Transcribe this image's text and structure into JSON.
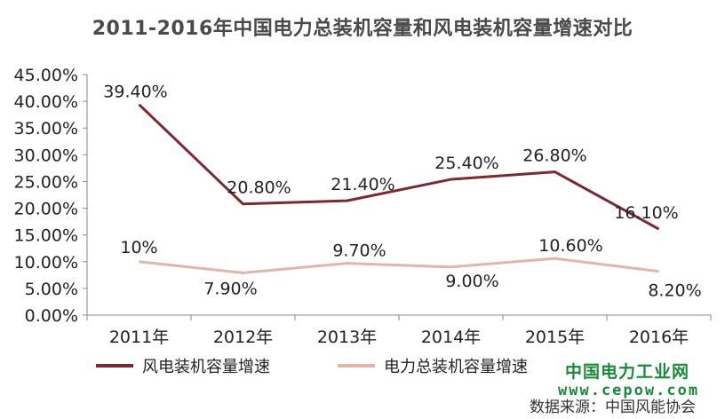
{
  "watermark": {
    "site_name": "中国电力工业网",
    "url": "www.cepow.com"
  },
  "source_note": "数据来源：中国风能协会",
  "colors": {
    "wind": "#7b2a30",
    "total": "#e2b5aa",
    "axis": "#888888",
    "title": "#4a4a4a",
    "watermark": "#1a8a3a"
  },
  "chart_data": {
    "type": "line",
    "title": "2011-2016年中国电力总装机容量和风电装机容量增速对比",
    "xlabel": "",
    "ylabel": "",
    "categories": [
      "2011年",
      "2012年",
      "2013年",
      "2014年",
      "2015年",
      "2016年"
    ],
    "ylim": [
      0,
      45
    ],
    "yticks": [
      "0.00%",
      "5.00%",
      "10.00%",
      "15.00%",
      "20.00%",
      "25.00%",
      "30.00%",
      "35.00%",
      "40.00%",
      "45.00%"
    ],
    "grid": false,
    "legend_position": "bottom-left",
    "series": [
      {
        "name": "风电装机容量增速",
        "values": [
          39.4,
          20.8,
          21.4,
          25.4,
          26.8,
          16.1
        ],
        "labels": [
          "39.40%",
          "20.80%",
          "21.40%",
          "25.40%",
          "26.80%",
          "16.10%"
        ],
        "color": "#7b2a30"
      },
      {
        "name": "电力总装机容量增速",
        "values": [
          10,
          7.9,
          9.7,
          9.0,
          10.6,
          8.2
        ],
        "labels": [
          "10%",
          "7.90%",
          "9.70%",
          "9.00%",
          "10.60%",
          "8.20%"
        ],
        "color": "#e2b5aa"
      }
    ]
  }
}
